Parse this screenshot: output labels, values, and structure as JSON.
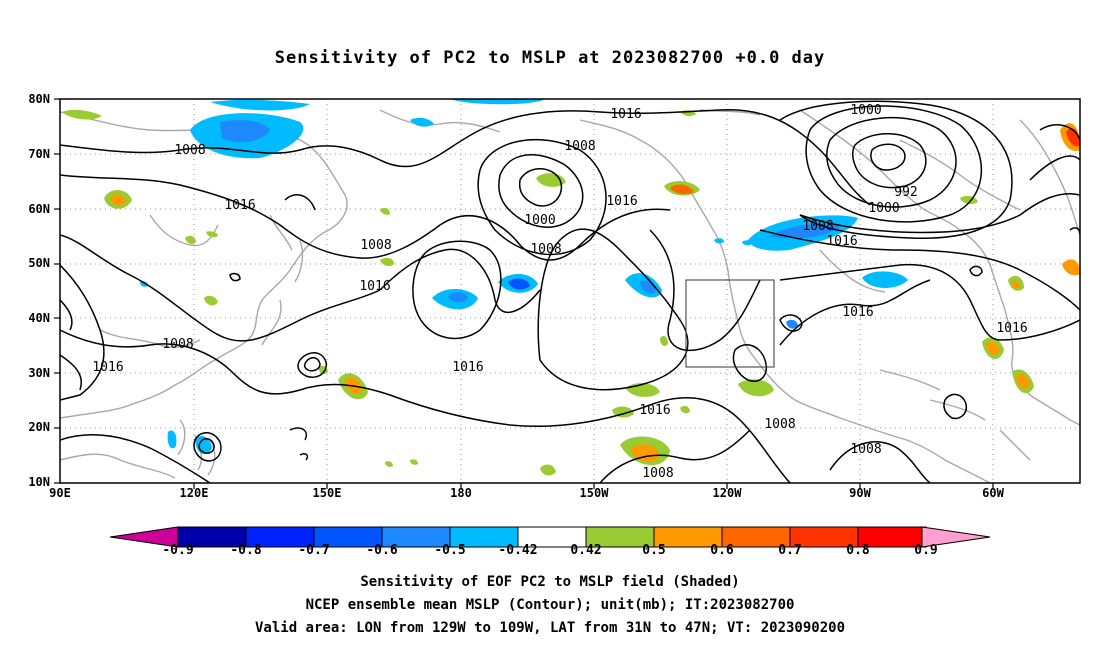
{
  "title": "Sensitivity of PC2 to MSLP at 2023082700 +0.0 day",
  "lat_labels": [
    "80N",
    "70N",
    "60N",
    "50N",
    "40N",
    "30N",
    "20N",
    "10N"
  ],
  "lon_labels": [
    "90E",
    "120E",
    "150E",
    "180",
    "150W",
    "120W",
    "90W",
    "60W"
  ],
  "colorbar": {
    "labels": [
      "-0.9",
      "-0.8",
      "-0.7",
      "-0.6",
      "-0.5",
      "-0.42",
      "0.42",
      "0.5",
      "0.6",
      "0.7",
      "0.8",
      "0.9"
    ],
    "colors": [
      "#cc0099",
      "#0000aa",
      "#0022ff",
      "#0055ff",
      "#1e88ff",
      "#00bbff",
      "#ffffff",
      "#99cc33",
      "#ff9900",
      "#ff6600",
      "#ff3300",
      "#ff0000",
      "#ffa0d0"
    ]
  },
  "captions": [
    "Sensitivity of EOF PC2 to MSLP field (Shaded)",
    "NCEP ensemble mean MSLP (Contour); unit(mb); IT:2023082700",
    "Valid area: LON from 129W to 109W, LAT from 31N to 47N; VT: 2023090200"
  ],
  "contour_labels": [
    "1008",
    "1016",
    "1016",
    "1008",
    "1016",
    "1000",
    "1008",
    "1016",
    "1016",
    "1008",
    "1000",
    "992",
    "1000",
    "1008",
    "1016",
    "1016",
    "1016",
    "1008",
    "1016",
    "1016",
    "1008",
    "1008",
    "1008"
  ],
  "map_extent": {
    "lon_min": 90,
    "lon_max": 318,
    "lat_min": 10,
    "lat_max": 80
  },
  "valid_area": {
    "lon_min": 231,
    "lon_max": 251,
    "lat_min": 31,
    "lat_max": 47
  }
}
